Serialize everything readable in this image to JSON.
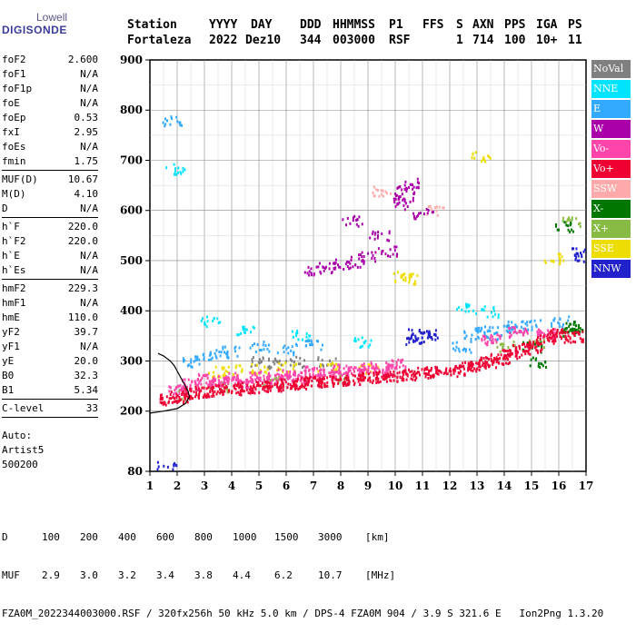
{
  "logo": {
    "brand": "Lowell",
    "title": "DIGISONDE"
  },
  "header": {
    "labels": [
      "Station",
      "YYYY",
      "DAY",
      "DDD",
      "HHMMSS",
      "P1",
      "FFS",
      "S",
      "AXN",
      "PPS",
      "IGA",
      "PS"
    ],
    "values": [
      "Fortaleza",
      "2022",
      "Dez10",
      "344",
      "003000",
      "RSF",
      "",
      "1",
      "714",
      "100",
      "10+",
      "11"
    ]
  },
  "params": [
    {
      "group": [
        {
          "label": "foF2",
          "value": "2.600"
        },
        {
          "label": "foF1",
          "value": "N/A"
        },
        {
          "label": "foF1p",
          "value": "N/A"
        },
        {
          "label": "foE",
          "value": "N/A"
        },
        {
          "label": "foEp",
          "value": "0.53"
        },
        {
          "label": "fxI",
          "value": "2.95"
        },
        {
          "label": "foEs",
          "value": "N/A"
        },
        {
          "label": "fmin",
          "value": "1.75"
        }
      ]
    },
    {
      "group": [
        {
          "label": "MUF(D)",
          "value": "10.67"
        },
        {
          "label": "M(D)",
          "value": "4.10"
        },
        {
          "label": "D",
          "value": "N/A"
        }
      ]
    },
    {
      "group": [
        {
          "label": "h`F",
          "value": "220.0"
        },
        {
          "label": "h`F2",
          "value": "220.0"
        },
        {
          "label": "h`E",
          "value": "N/A"
        },
        {
          "label": "h`Es",
          "value": "N/A"
        }
      ]
    },
    {
      "group": [
        {
          "label": "hmF2",
          "value": "229.3"
        },
        {
          "label": "hmF1",
          "value": "N/A"
        },
        {
          "label": "hmE",
          "value": "110.0"
        },
        {
          "label": "yF2",
          "value": "39.7"
        },
        {
          "label": "yF1",
          "value": "N/A"
        },
        {
          "label": "yE",
          "value": "20.0"
        },
        {
          "label": "B0",
          "value": "32.3"
        },
        {
          "label": "B1",
          "value": "5.34"
        }
      ]
    },
    {
      "group": [
        {
          "label": "C-level",
          "value": "33"
        }
      ]
    }
  ],
  "auto": {
    "line1": "Auto:",
    "line2": "Artist5",
    "line3": "500200"
  },
  "legend": [
    {
      "label": "NoVal",
      "color": "#808080"
    },
    {
      "label": "NNE",
      "color": "#00e5ff"
    },
    {
      "label": "E",
      "color": "#33aaff"
    },
    {
      "label": "W",
      "color": "#aa00aa"
    },
    {
      "label": "Vo-",
      "color": "#ff44aa"
    },
    {
      "label": "Vo+",
      "color": "#ee0033"
    },
    {
      "label": "SSW",
      "color": "#ffaaaa"
    },
    {
      "label": "X-",
      "color": "#007700"
    },
    {
      "label": "X+",
      "color": "#88bb44"
    },
    {
      "label": "SSE",
      "color": "#eedd00"
    },
    {
      "label": "NNW",
      "color": "#2222cc"
    }
  ],
  "bottom": {
    "d_label": "D",
    "d_values": [
      "100",
      "200",
      "400",
      "600",
      "800",
      "1000",
      "1500",
      "3000",
      "[km]"
    ],
    "muf_label": "MUF",
    "muf_values": [
      "2.9",
      "3.0",
      "3.2",
      "3.4",
      "3.8",
      "4.4",
      "6.2",
      "10.7",
      "[MHz]"
    ],
    "footer": "FZA0M_2022344003000.RSF / 320fx256h 50 kHz 5.0 km / DPS-4 FZA0M 904 / 3.9 S 321.6 E   Ion2Png 1.3.20"
  },
  "chart_data": {
    "type": "scatter",
    "title": "",
    "xlabel": "",
    "ylabel": "",
    "xlim": [
      1,
      17
    ],
    "ylim": [
      80,
      900
    ],
    "x_ticks": [
      "1",
      "2",
      "3",
      "4",
      "5",
      "6",
      "7",
      "8",
      "9",
      "10",
      "11",
      "12",
      "13",
      "14",
      "15",
      "16",
      "17"
    ],
    "y_ticks": [
      "80",
      "200",
      "300",
      "400",
      "500",
      "600",
      "700",
      "800",
      "900"
    ],
    "y_tick_values": [
      80,
      200,
      300,
      400,
      500,
      600,
      700,
      800,
      900
    ],
    "grid": true,
    "legend_position": "right",
    "traces": [
      {
        "name": "Vo+",
        "points": [
          [
            1.7,
            225
          ],
          [
            2.0,
            230
          ],
          [
            2.5,
            238
          ],
          [
            3.0,
            240
          ],
          [
            3.5,
            243
          ],
          [
            4.0,
            245
          ],
          [
            4.5,
            248
          ],
          [
            5.0,
            250
          ],
          [
            5.5,
            252
          ],
          [
            6.0,
            255
          ],
          [
            6.5,
            257
          ],
          [
            7.0,
            260
          ],
          [
            7.5,
            262
          ],
          [
            8.0,
            263
          ],
          [
            8.5,
            265
          ],
          [
            9.0,
            268
          ],
          [
            9.5,
            270
          ],
          [
            10.0,
            272
          ],
          [
            10.5,
            275
          ],
          [
            11.0,
            278
          ],
          [
            11.5,
            280
          ],
          [
            12.2,
            282
          ],
          [
            12.6,
            290
          ],
          [
            13.0,
            295
          ],
          [
            13.4,
            300
          ],
          [
            13.8,
            305
          ],
          [
            14.2,
            318
          ],
          [
            14.6,
            325
          ],
          [
            15.0,
            330
          ],
          [
            15.5,
            345
          ],
          [
            16.0,
            355
          ],
          [
            16.5,
            350
          ]
        ]
      },
      {
        "name": "Vo-",
        "points": [
          [
            2.0,
            245
          ],
          [
            2.5,
            255
          ],
          [
            3.0,
            265
          ],
          [
            3.5,
            262
          ],
          [
            4.0,
            268
          ],
          [
            4.5,
            260
          ],
          [
            5.0,
            270
          ],
          [
            5.5,
            265
          ],
          [
            6.0,
            275
          ],
          [
            6.5,
            270
          ],
          [
            7.0,
            280
          ],
          [
            7.5,
            275
          ],
          [
            8.0,
            285
          ],
          [
            8.5,
            280
          ],
          [
            9.0,
            290
          ],
          [
            9.5,
            285
          ],
          [
            10.0,
            295
          ],
          [
            13.5,
            345
          ],
          [
            14.5,
            360
          ],
          [
            15.5,
            355
          ]
        ]
      },
      {
        "name": "W",
        "points": [
          [
            7.0,
            480
          ],
          [
            7.5,
            488
          ],
          [
            8.0,
            495
          ],
          [
            8.5,
            500
          ],
          [
            9.0,
            510
          ],
          [
            9.7,
            520
          ],
          [
            10.2,
            615
          ],
          [
            10.4,
            640
          ],
          [
            10.6,
            655
          ],
          [
            10.3,
            625
          ],
          [
            11.0,
            595
          ],
          [
            9.4,
            550
          ],
          [
            8.4,
            580
          ]
        ]
      },
      {
        "name": "E",
        "points": [
          [
            2.5,
            300
          ],
          [
            3.0,
            310
          ],
          [
            3.5,
            315
          ],
          [
            4.0,
            320
          ],
          [
            5.0,
            330
          ],
          [
            6.0,
            325
          ],
          [
            7.0,
            335
          ],
          [
            12.4,
            330
          ],
          [
            12.8,
            355
          ],
          [
            13.2,
            360
          ],
          [
            13.6,
            355
          ],
          [
            14.0,
            365
          ],
          [
            14.4,
            370
          ],
          [
            15.0,
            375
          ],
          [
            16.0,
            380
          ],
          [
            1.8,
            780
          ]
        ]
      },
      {
        "name": "NNE",
        "points": [
          [
            1.9,
            685
          ],
          [
            3.2,
            380
          ],
          [
            4.5,
            360
          ],
          [
            6.5,
            355
          ],
          [
            8.8,
            340
          ],
          [
            12.6,
            405
          ],
          [
            13.5,
            400
          ]
        ]
      },
      {
        "name": "SSE",
        "points": [
          [
            3.5,
            280
          ],
          [
            4.0,
            283
          ],
          [
            5.0,
            285
          ],
          [
            6.0,
            288
          ],
          [
            7.5,
            290
          ],
          [
            9.0,
            285
          ],
          [
            10.2,
            470
          ],
          [
            10.5,
            465
          ],
          [
            15.8,
            505
          ],
          [
            13.1,
            710
          ]
        ]
      },
      {
        "name": "X+",
        "points": [
          [
            2.4,
            235
          ],
          [
            3.5,
            250
          ],
          [
            5.5,
            260
          ],
          [
            8.0,
            270
          ],
          [
            14.0,
            330
          ],
          [
            15.2,
            340
          ],
          [
            16.4,
            580
          ]
        ]
      },
      {
        "name": "X-",
        "points": [
          [
            16.4,
            360
          ],
          [
            16.5,
            370
          ],
          [
            16.6,
            365
          ],
          [
            15.0,
            330
          ],
          [
            15.2,
            298
          ],
          [
            16.2,
            570
          ]
        ]
      },
      {
        "name": "NNW",
        "points": [
          [
            1.6,
            90
          ],
          [
            10.6,
            345
          ],
          [
            10.8,
            355
          ],
          [
            11.0,
            350
          ],
          [
            11.2,
            355
          ],
          [
            16.8,
            520
          ],
          [
            16.9,
            510
          ]
        ]
      },
      {
        "name": "SSW",
        "points": [
          [
            11.5,
            600
          ],
          [
            9.5,
            640
          ]
        ]
      },
      {
        "name": "NoVal",
        "points": [
          [
            5.0,
            300
          ],
          [
            5.6,
            298
          ],
          [
            6.3,
            300
          ],
          [
            7.5,
            302
          ]
        ]
      }
    ],
    "curve": {
      "name": "profile",
      "points": [
        [
          1.0,
          196
        ],
        [
          1.5,
          200
        ],
        [
          2.0,
          205
        ],
        [
          2.3,
          215
        ],
        [
          2.45,
          228
        ],
        [
          2.4,
          240
        ],
        [
          2.2,
          260
        ],
        [
          2.0,
          280
        ],
        [
          1.9,
          290
        ],
        [
          1.75,
          300
        ],
        [
          1.5,
          310
        ],
        [
          1.3,
          315
        ]
      ]
    }
  }
}
